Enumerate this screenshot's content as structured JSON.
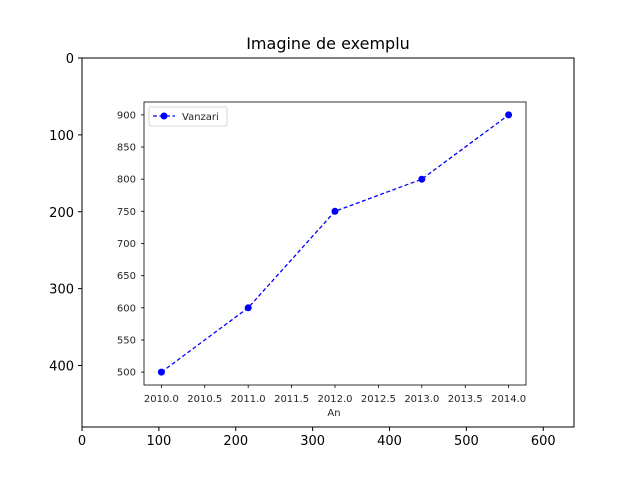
{
  "chart_data": {
    "title": "Imagine de exemplu",
    "outer_axes": {
      "type": "image",
      "x_ticks": [
        "0",
        "100",
        "200",
        "300",
        "400",
        "500",
        "600"
      ],
      "y_ticks": [
        "0",
        "100",
        "200",
        "300",
        "400"
      ],
      "xlim": [
        0,
        640
      ],
      "ylim": [
        480,
        0
      ]
    },
    "inner_chart": {
      "type": "line",
      "x": [
        2010.0,
        2011.0,
        2012.0,
        2013.0,
        2014.0
      ],
      "series": [
        {
          "name": "Vanzari",
          "values": [
            500,
            600,
            750,
            800,
            900
          ],
          "color": "#0000ff",
          "style": "dashed",
          "marker": "circle"
        }
      ],
      "xlabel": "An",
      "ylabel": "",
      "xlim": [
        2009.8,
        2014.2
      ],
      "ylim": [
        480,
        920
      ],
      "x_ticks": [
        "2010.0",
        "2010.5",
        "2011.0",
        "2011.5",
        "2012.0",
        "2012.5",
        "2013.0",
        "2013.5",
        "2014.0"
      ],
      "y_ticks": [
        "500",
        "550",
        "600",
        "650",
        "700",
        "750",
        "800",
        "850",
        "900"
      ],
      "legend": "top-left",
      "grid": false
    }
  }
}
